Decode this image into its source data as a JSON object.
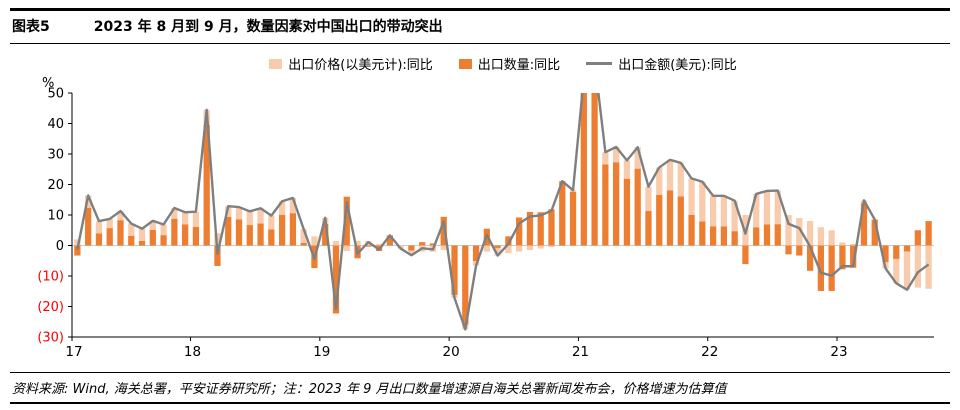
{
  "header": {
    "tag": "图表5",
    "title": "2023 年 8 月到 9 月，数量因素对中国出口的带动突出"
  },
  "footer": {
    "note": "资料来源: Wind, 海关总署，平安证券研究所；注：2023 年 9 月出口数量增速源自海关总署新闻发布会，价格增速为估算值"
  },
  "chart_data": {
    "type": "bar",
    "subtype": "stacked-bars-with-line-overlay",
    "title": "2023 年 8 月到 9 月，数量因素对中国出口的带动突出",
    "unit_label": "%",
    "xlabel": "",
    "ylabel": "%",
    "ylim": [
      -30,
      50
    ],
    "yticks": [
      50,
      40,
      30,
      20,
      10,
      0,
      -10,
      -20,
      -30
    ],
    "negative_tick_color": "#ff0000",
    "grid": "zero-line-only",
    "legend_position": "top-center",
    "x_range": {
      "start": "2017-02",
      "end": "2023-09",
      "frequency": "monthly",
      "points": 80
    },
    "xticks": [
      "17",
      "18",
      "19",
      "20",
      "21",
      "22",
      "23"
    ],
    "xtick_indices": [
      0,
      11,
      23,
      35,
      47,
      59,
      71
    ],
    "series": [
      {
        "name": "出口价格(以美元计):同比",
        "role": "price",
        "render": "bar",
        "color": "#f8cbad",
        "values": [
          2,
          4,
          4,
          3,
          3,
          4,
          4,
          3,
          3.5,
          3.5,
          4,
          5,
          5,
          4,
          3.5,
          4,
          4.5,
          5,
          4.5,
          4.5,
          5,
          4.5,
          3,
          2,
          1.5,
          -1.8,
          1.5,
          1.5,
          0.5,
          0,
          -1,
          -1.5,
          -2,
          -2,
          -1.5,
          -1,
          -1.5,
          -1.5,
          -2,
          -2.5,
          -2.5,
          -2,
          -1.5,
          -1,
          -0.5,
          0,
          0.5,
          2,
          3,
          4,
          5,
          6,
          7,
          8,
          9,
          10,
          11,
          12,
          13,
          10,
          10,
          10,
          10,
          11,
          11,
          11,
          10,
          9,
          8,
          6,
          5,
          1,
          0.5,
          1,
          0,
          -2,
          -8,
          -12.5,
          -13.8,
          -14.2
        ]
      },
      {
        "name": "出口数量:同比",
        "role": "quantity",
        "render": "bar",
        "color": "#ed7d31",
        "values": [
          -3.3,
          12.4,
          4,
          5.7,
          8.3,
          3.2,
          1.5,
          5.1,
          3.4,
          8.8,
          6.9,
          6.1,
          39.5,
          -6.7,
          9.4,
          8.6,
          6.7,
          7.2,
          5.3,
          10,
          10.6,
          0.9,
          -7.4,
          7.1,
          -22.3,
          16,
          -4.2,
          -0.4,
          -1.8,
          3.3,
          0,
          -1.7,
          1.1,
          0.7,
          9.4,
          -16.2,
          -26,
          -5.1,
          5.5,
          -0.8,
          3,
          9.2,
          11,
          10.9,
          11.9,
          21.1,
          17.6,
          53,
          57.6,
          26.6,
          27.3,
          21.9,
          25.2,
          11.3,
          16.6,
          18.1,
          16.1,
          10,
          7.9,
          6.3,
          6.3,
          4.7,
          -6.1,
          5.9,
          6.9,
          7,
          -2.9,
          -3.3,
          -8.3,
          -14.9,
          -14.9,
          -7.8,
          -7.3,
          13.8,
          8.5,
          -5.5,
          -4.4,
          -2,
          5,
          8
        ]
      },
      {
        "name": "出口金额(美元):同比",
        "role": "value",
        "render": "line",
        "color": "#7f7f7f",
        "values": [
          -1.3,
          16.4,
          8,
          8.7,
          11.3,
          7.2,
          5.5,
          8.1,
          6.9,
          12.3,
          10.9,
          11.1,
          44.5,
          -2.7,
          12.9,
          12.6,
          11.2,
          12.2,
          9.8,
          14.5,
          15.6,
          5.4,
          -4.4,
          9.1,
          -20.8,
          14.2,
          -2.7,
          1.1,
          -1.3,
          3.3,
          -1,
          -3.2,
          -0.9,
          -1.3,
          7.9,
          -17.2,
          -27.5,
          -6.6,
          3.5,
          -3.3,
          0.5,
          7.2,
          9.5,
          9.9,
          11.4,
          21.1,
          18.1,
          55,
          60.6,
          30.6,
          32.3,
          27.9,
          32.2,
          19.3,
          25.6,
          28.1,
          27.1,
          22,
          20.9,
          16.3,
          16.3,
          14.7,
          3.9,
          16.9,
          17.9,
          18,
          7.1,
          5.7,
          -0.3,
          -8.9,
          -9.9,
          -6.8,
          -6.8,
          14.8,
          8.5,
          -7.5,
          -12.4,
          -14.5,
          -8.8,
          -6.2
        ]
      }
    ]
  }
}
